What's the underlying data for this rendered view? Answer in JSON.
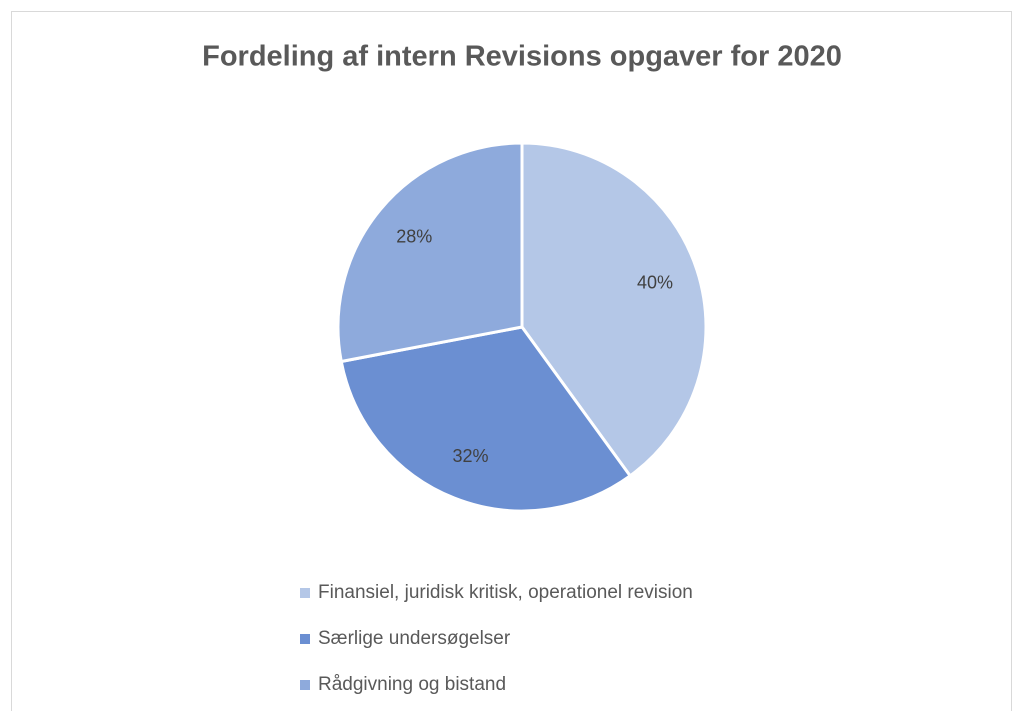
{
  "chart_data": {
    "type": "pie",
    "title": "Fordeling af intern Revisions opgaver for 2020",
    "categories": [
      "Finansiel, juridisk kritisk, operationel revision",
      "Særlige undersøgelser",
      "Rådgivning og bistand"
    ],
    "values": [
      40,
      32,
      28
    ],
    "value_labels": [
      "40%",
      "32%",
      "28%"
    ],
    "colors": [
      "#b4c7e7",
      "#6b8fd2",
      "#8eaadc"
    ],
    "legend": "bottom"
  }
}
